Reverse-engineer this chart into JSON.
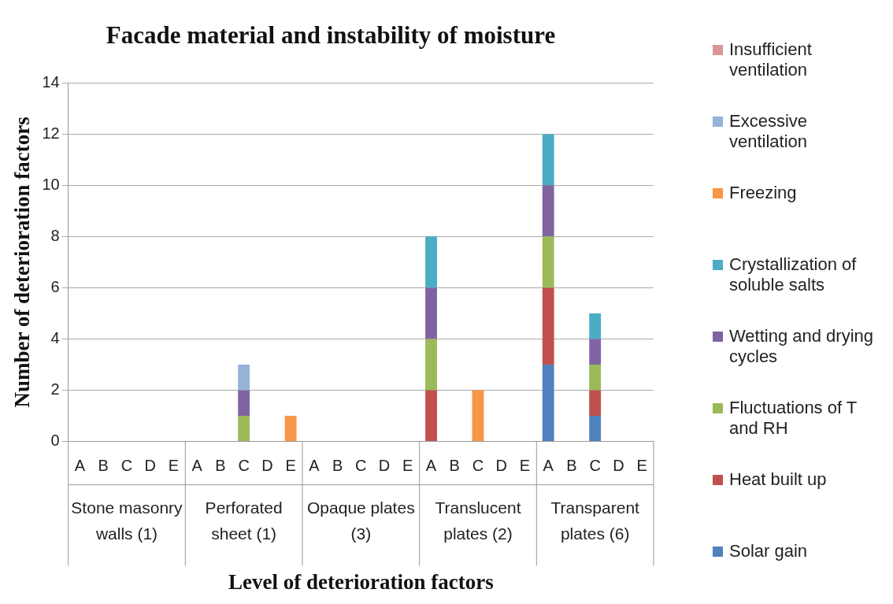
{
  "chart_data": {
    "type": "bar",
    "stacked": true,
    "title": "Facade material and instability of moisture",
    "xlabel": "Level of deterioration factors",
    "ylabel": "Number of deterioration factors",
    "categories": [
      "A",
      "B",
      "C",
      "D",
      "E",
      "A",
      "B",
      "C",
      "D",
      "E",
      "A",
      "B",
      "C",
      "D",
      "E",
      "A",
      "B",
      "C",
      "D",
      "E",
      "A",
      "B",
      "C",
      "D",
      "E"
    ],
    "annotations": [
      "Stone masonry walls (1)",
      "Perforated sheet (1)",
      "Opaque plates  (3)",
      "Translucent plates (2)",
      "Transparent plates (6)"
    ],
    "ylim": [
      0,
      14
    ],
    "yticks": [
      0,
      2,
      4,
      6,
      8,
      10,
      12,
      14
    ],
    "grid": "y",
    "legend": "right",
    "series": [
      {
        "name": "Solar gain",
        "color": "#4f81bd",
        "values": [
          0,
          0,
          0,
          0,
          0,
          0,
          0,
          0,
          0,
          0,
          0,
          0,
          0,
          0,
          0,
          0,
          0,
          0,
          0,
          0,
          3,
          0,
          1,
          0,
          0
        ]
      },
      {
        "name": "Heat built up",
        "color": "#c0504d",
        "values": [
          0,
          0,
          0,
          0,
          0,
          0,
          0,
          0,
          0,
          0,
          0,
          0,
          0,
          0,
          0,
          2,
          0,
          0,
          0,
          0,
          3,
          0,
          1,
          0,
          0
        ]
      },
      {
        "name": "Fluctuations of T and RH",
        "color": "#9bbb59",
        "values": [
          0,
          0,
          0,
          0,
          0,
          0,
          0,
          1,
          0,
          0,
          0,
          0,
          0,
          0,
          0,
          2,
          0,
          0,
          0,
          0,
          2,
          0,
          1,
          0,
          0
        ]
      },
      {
        "name": "Wetting and drying cycles",
        "color": "#8064a2",
        "values": [
          0,
          0,
          0,
          0,
          0,
          0,
          0,
          1,
          0,
          0,
          0,
          0,
          0,
          0,
          0,
          2,
          0,
          0,
          0,
          0,
          2,
          0,
          1,
          0,
          0
        ]
      },
      {
        "name": "Crystallization of soluble salts",
        "color": "#4bacc6",
        "values": [
          0,
          0,
          0,
          0,
          0,
          0,
          0,
          0,
          0,
          0,
          0,
          0,
          0,
          0,
          0,
          2,
          0,
          0,
          0,
          0,
          2,
          0,
          1,
          0,
          0
        ]
      },
      {
        "name": "Freezing",
        "color": "#f79646",
        "values": [
          0,
          0,
          0,
          0,
          0,
          0,
          0,
          0,
          0,
          1,
          0,
          0,
          0,
          0,
          0,
          0,
          0,
          2,
          0,
          0,
          0,
          0,
          0,
          0,
          0
        ]
      },
      {
        "name": "Excessive ventilation",
        "color": "#95b3d7",
        "values": [
          0,
          0,
          0,
          0,
          0,
          0,
          0,
          1,
          0,
          0,
          0,
          0,
          0,
          0,
          0,
          0,
          0,
          0,
          0,
          0,
          0,
          0,
          0,
          0,
          0
        ]
      },
      {
        "name": "Insufficient ventilation",
        "color": "#d99694",
        "values": [
          0,
          0,
          0,
          0,
          0,
          0,
          0,
          0,
          0,
          0,
          0,
          0,
          0,
          0,
          0,
          0,
          0,
          0,
          0,
          0,
          0,
          0,
          0,
          0,
          0
        ]
      }
    ]
  }
}
